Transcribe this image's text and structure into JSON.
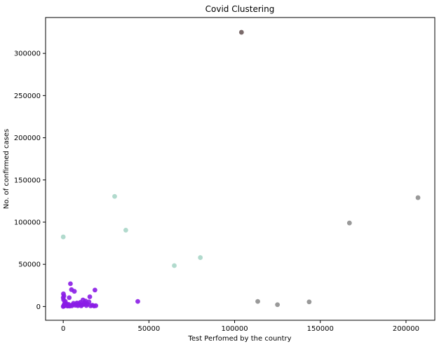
{
  "chart_data": {
    "type": "scatter",
    "title": "Covid Clustering",
    "xlabel": "Test Perfomed by the country",
    "ylabel": "No. of confirmed cases",
    "xlim": [
      -10300,
      216800
    ],
    "ylim": [
      -16300,
      342500
    ],
    "xticks": [
      0,
      50000,
      100000,
      150000,
      200000
    ],
    "xtick_labels": [
      "0",
      "50000",
      "100000",
      "150000",
      "200000"
    ],
    "yticks": [
      0,
      50000,
      100000,
      150000,
      200000,
      250000,
      300000
    ],
    "ytick_labels": [
      "0",
      "50000",
      "100000",
      "150000",
      "200000",
      "250000",
      "300000"
    ],
    "grid": false,
    "series": [
      {
        "color": "#8a1ce6",
        "points": [
          [
            0,
            0
          ],
          [
            300,
            1000
          ],
          [
            600,
            2500
          ],
          [
            900,
            4000
          ],
          [
            1200,
            6000
          ],
          [
            200,
            8000
          ],
          [
            0,
            10500
          ],
          [
            400,
            12500
          ],
          [
            100,
            15000
          ],
          [
            500,
            500
          ],
          [
            1500,
            1500
          ],
          [
            2000,
            3000
          ],
          [
            2500,
            500
          ],
          [
            3000,
            1200
          ],
          [
            3200,
            2500
          ],
          [
            3500,
            10500
          ],
          [
            3800,
            500
          ],
          [
            4200,
            27000
          ],
          [
            4800,
            20000
          ],
          [
            5000,
            800
          ],
          [
            5500,
            2200
          ],
          [
            6000,
            3800
          ],
          [
            6500,
            18000
          ],
          [
            7000,
            1500
          ],
          [
            7500,
            2800
          ],
          [
            8000,
            4200
          ],
          [
            8500,
            1000
          ],
          [
            9000,
            2000
          ],
          [
            9500,
            3500
          ],
          [
            10000,
            5000
          ],
          [
            10500,
            800
          ],
          [
            11000,
            1800
          ],
          [
            11500,
            7800
          ],
          [
            12000,
            2500
          ],
          [
            12500,
            4500
          ],
          [
            13000,
            6500
          ],
          [
            13500,
            1200
          ],
          [
            14000,
            3000
          ],
          [
            15000,
            5500
          ],
          [
            15500,
            11500
          ],
          [
            16000,
            800
          ],
          [
            17000,
            1500
          ],
          [
            18000,
            600
          ],
          [
            18500,
            19500
          ],
          [
            19000,
            1000
          ],
          [
            43500,
            6000
          ]
        ]
      },
      {
        "color": "#a8d6c8",
        "points": [
          [
            0,
            82500
          ],
          [
            30000,
            130500
          ],
          [
            36500,
            90500
          ],
          [
            64800,
            48500
          ],
          [
            80000,
            58000
          ]
        ]
      },
      {
        "color": "#8e8e8e",
        "points": [
          [
            113500,
            6000
          ],
          [
            125000,
            2200
          ],
          [
            143500,
            5500
          ],
          [
            167000,
            99000
          ],
          [
            207000,
            129000
          ]
        ]
      },
      {
        "color": "#6b5a5a",
        "points": [
          [
            104000,
            325000
          ]
        ]
      }
    ]
  }
}
